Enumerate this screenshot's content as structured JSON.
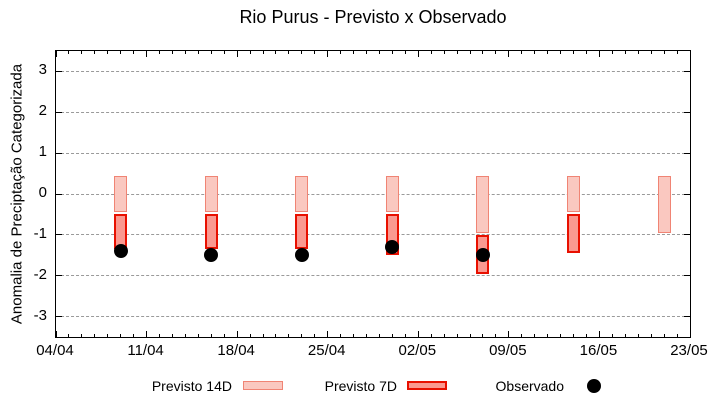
{
  "title": "Rio Purus - Previsto x Observado",
  "y_axis_label": "Anomalia de Preciptação Categorizada",
  "legend": {
    "items": [
      {
        "label": "Previsto 14D",
        "series": "previsto_14d",
        "marker": "bar-swatch"
      },
      {
        "label": "Previsto 7D",
        "series": "previsto_7d",
        "marker": "bar-swatch"
      },
      {
        "label": "Observado",
        "series": "observado",
        "marker": "dot"
      }
    ]
  },
  "colors": {
    "previsto_14d_fill": "#fac8c0",
    "previsto_14d_border": "#f08474",
    "previsto_7d_fill": "#fa9990",
    "previsto_7d_border": "#e81000",
    "observado": "#000000",
    "grid": "#9a9a9a",
    "axis": "#000000",
    "background": "#ffffff"
  },
  "chart_data": {
    "type": "bar",
    "title": "Rio Purus - Previsto x Observado",
    "xlabel": "",
    "ylabel": "Anomalia de Preciptação Categorizada",
    "legend_position": "bottom",
    "grid": "dashed-horizontal",
    "x_axis": {
      "tick_labels": [
        "04/04",
        "11/04",
        "18/04",
        "25/04",
        "02/05",
        "09/05",
        "16/05",
        "23/05"
      ],
      "tick_interval_days": 7,
      "minor_tick_interval_days": 1,
      "total_days": 49
    },
    "y_axis": {
      "ticks": [
        3,
        2,
        1,
        0,
        -1,
        -2,
        -3
      ],
      "range": [
        -3.5,
        3.5
      ]
    },
    "points": [
      {
        "date": "09/04",
        "previsto_14d": {
          "top": 0.45,
          "bottom": -0.45
        },
        "previsto_7d": {
          "top": -0.5,
          "bottom": -1.35
        },
        "observado": -1.4
      },
      {
        "date": "16/04",
        "previsto_14d": {
          "top": 0.45,
          "bottom": -0.45
        },
        "previsto_7d": {
          "top": -0.5,
          "bottom": -1.35
        },
        "observado": -1.5
      },
      {
        "date": "23/04",
        "previsto_14d": {
          "top": 0.45,
          "bottom": -0.45
        },
        "previsto_7d": {
          "top": -0.5,
          "bottom": -1.35
        },
        "observado": -1.5
      },
      {
        "date": "30/04",
        "previsto_14d": {
          "top": 0.45,
          "bottom": -0.45
        },
        "previsto_7d": {
          "top": -0.5,
          "bottom": -1.5
        },
        "observado": -1.3
      },
      {
        "date": "07/05",
        "previsto_14d": {
          "top": 0.45,
          "bottom": -0.95
        },
        "previsto_7d": {
          "top": -1.0,
          "bottom": -1.95
        },
        "observado": -1.5
      },
      {
        "date": "14/05",
        "previsto_14d": {
          "top": 0.45,
          "bottom": -0.45
        },
        "previsto_7d": {
          "top": -0.5,
          "bottom": -1.45
        },
        "observado": null
      },
      {
        "date": "21/05",
        "previsto_14d": {
          "top": 0.45,
          "bottom": -0.95
        },
        "previsto_7d": null,
        "observado": null
      }
    ]
  }
}
